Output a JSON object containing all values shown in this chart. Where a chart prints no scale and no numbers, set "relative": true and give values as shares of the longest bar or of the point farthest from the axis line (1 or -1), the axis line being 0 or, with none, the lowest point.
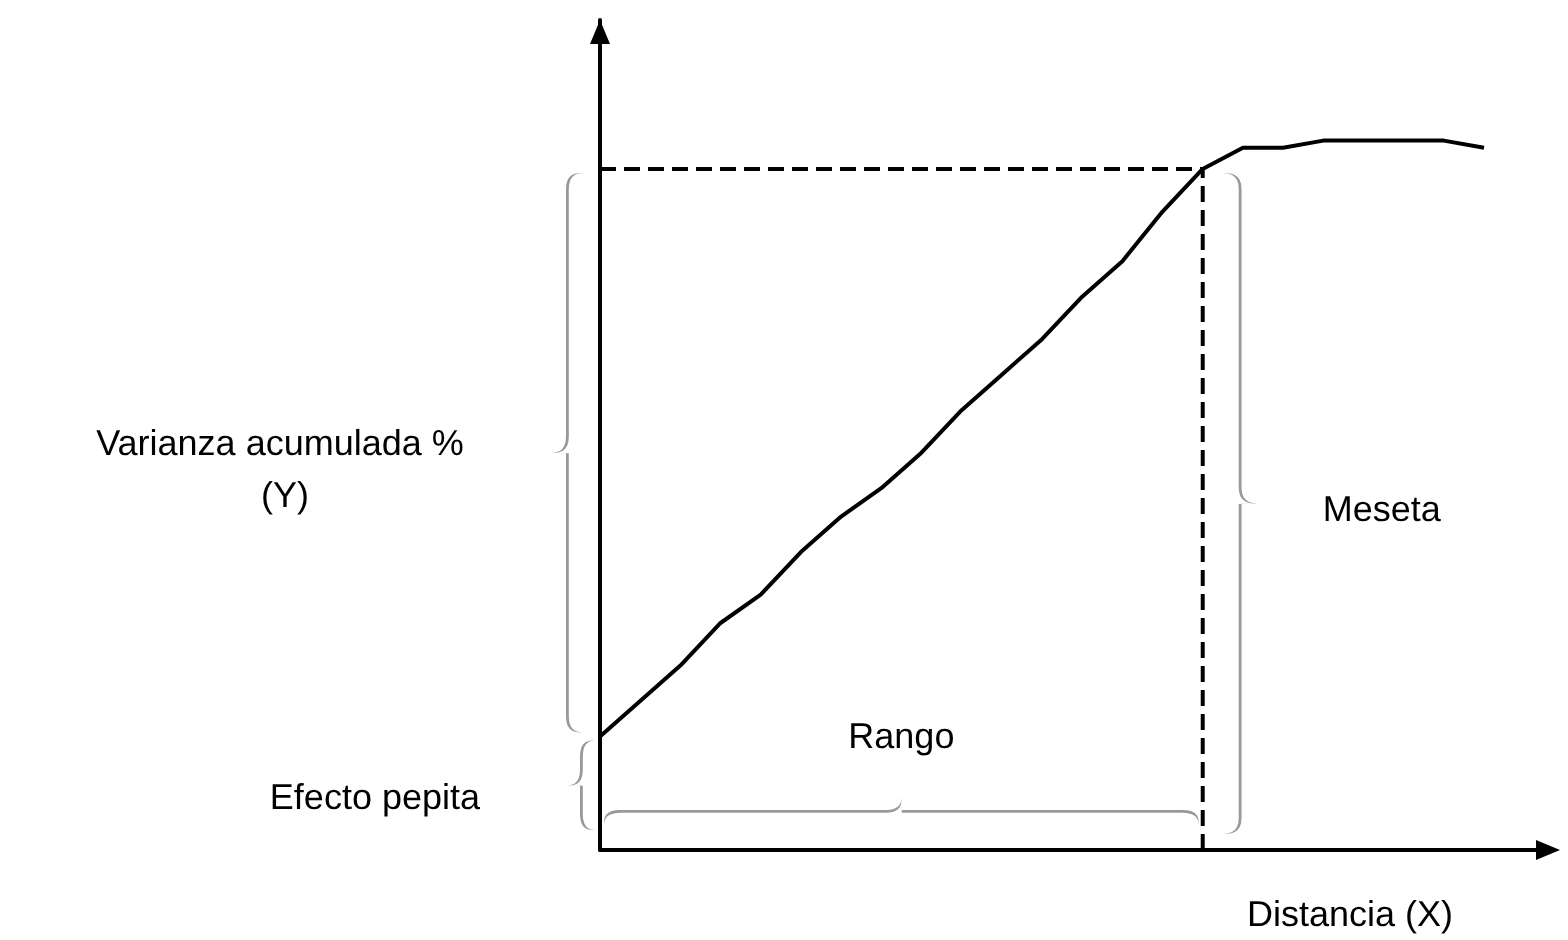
{
  "chart_data": {
    "type": "line",
    "relative": true,
    "xlabel": "Distancia (X)",
    "ylabel": "Varianza acumulada % (Y)",
    "annotations": [
      "Efecto pepita",
      "Rango",
      "Meseta"
    ],
    "categories": [
      null,
      null,
      null,
      null,
      null,
      null,
      null,
      null,
      null,
      null,
      null,
      null,
      null,
      null,
      null,
      null,
      null,
      null,
      null,
      null,
      null,
      null,
      null
    ],
    "series": [
      {
        "color": "#000000",
        "values": [
          0.16,
          0.21,
          0.26,
          0.32,
          0.36,
          0.42,
          0.47,
          0.51,
          0.56,
          0.62,
          0.67,
          0.72,
          0.78,
          0.83,
          0.9,
          0.96,
          0.99,
          0.99,
          1,
          1,
          1,
          1,
          0.99
        ]
      }
    ],
    "ref_lines": [
      {
        "axis": "y",
        "value": 0.96,
        "line_style": "dashed",
        "color": "#000000"
      }
    ],
    "marker": "none",
    "line_style": "solid",
    "grid": false
  }
}
